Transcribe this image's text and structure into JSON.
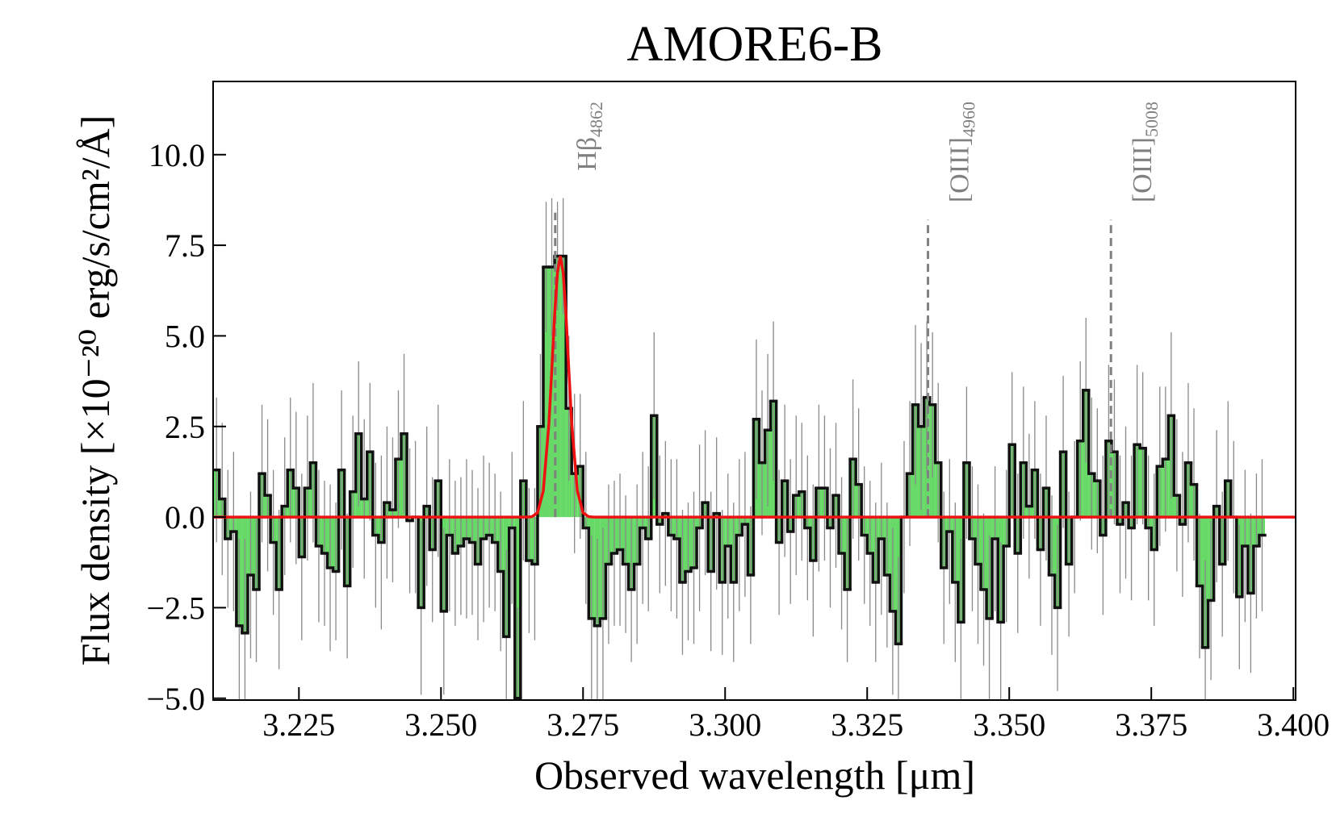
{
  "chart_data": {
    "type": "step",
    "title": "AMORE6-B",
    "x_label": "Observed wavelength [μm]",
    "y_label": "Flux density [×10⁻²⁰ erg/s/cm²/Å]",
    "xlim": [
      3.2099,
      3.4004
    ],
    "ylim": [
      -5.05,
      12.02
    ],
    "xticks": [
      3.225,
      {
        "value": 3.25,
        "label": "3.250"
      },
      3.275,
      {
        "value": 3.3,
        "label": "3.300"
      },
      3.325,
      {
        "value": 3.35,
        "label": "3.350"
      },
      3.375,
      {
        "value": 3.4,
        "label": "3.400"
      }
    ],
    "yticks": [
      {
        "value": -5,
        "label": "−5.0"
      },
      {
        "value": -2.5,
        "label": "−2.5"
      },
      {
        "value": 0,
        "label": "0.0"
      },
      2.5,
      {
        "value": 5,
        "label": "5.0"
      },
      7.5,
      {
        "value": 10,
        "label": "10.0"
      }
    ],
    "series": [
      {
        "name": "spectrum",
        "color": "#66d966",
        "edge_color": "#111111",
        "error_color": "#8a8a8a",
        "x": [
          3.2105,
          3.2115,
          3.2125,
          3.2135,
          3.2145,
          3.2155,
          3.2165,
          3.2175,
          3.2185,
          3.2195,
          3.2205,
          3.2215,
          3.2225,
          3.2235,
          3.2245,
          3.2255,
          3.2265,
          3.2275,
          3.2285,
          3.2295,
          3.2305,
          3.2315,
          3.2325,
          3.2335,
          3.2345,
          3.2355,
          3.2365,
          3.2375,
          3.2385,
          3.2395,
          3.2405,
          3.2415,
          3.2425,
          3.2435,
          3.2445,
          3.2455,
          3.2465,
          3.2475,
          3.2485,
          3.2495,
          3.2505,
          3.2515,
          3.2525,
          3.2535,
          3.2545,
          3.2555,
          3.2565,
          3.2575,
          3.2585,
          3.2595,
          3.2605,
          3.2615,
          3.2625,
          3.2635,
          3.2645,
          3.2655,
          3.2665,
          3.2675,
          3.2685,
          3.2695,
          3.2705,
          3.2715,
          3.2725,
          3.2735,
          3.2745,
          3.2755,
          3.2765,
          3.2775,
          3.2785,
          3.2795,
          3.2805,
          3.2815,
          3.2825,
          3.2835,
          3.2845,
          3.2855,
          3.2865,
          3.2875,
          3.2885,
          3.2895,
          3.2905,
          3.2915,
          3.2925,
          3.2935,
          3.2945,
          3.2955,
          3.2965,
          3.2975,
          3.2985,
          3.2995,
          3.3005,
          3.3015,
          3.3025,
          3.3035,
          3.3045,
          3.3055,
          3.3065,
          3.3075,
          3.3085,
          3.3095,
          3.3105,
          3.3115,
          3.3125,
          3.3135,
          3.3145,
          3.3155,
          3.3165,
          3.3175,
          3.3185,
          3.3195,
          3.3205,
          3.3215,
          3.3225,
          3.3235,
          3.3245,
          3.3255,
          3.3265,
          3.3275,
          3.3285,
          3.3295,
          3.3305,
          3.3315,
          3.3325,
          3.3335,
          3.3345,
          3.3355,
          3.3365,
          3.3375,
          3.3385,
          3.3395,
          3.3405,
          3.3415,
          3.3425,
          3.3435,
          3.3445,
          3.3455,
          3.3465,
          3.3475,
          3.3485,
          3.3495,
          3.3505,
          3.3515,
          3.3525,
          3.3535,
          3.3545,
          3.3555,
          3.3565,
          3.3575,
          3.3585,
          3.3595,
          3.3605,
          3.3615,
          3.3625,
          3.3635,
          3.3645,
          3.3655,
          3.3665,
          3.3675,
          3.3685,
          3.3695,
          3.3705,
          3.3715,
          3.3725,
          3.3735,
          3.3745,
          3.3755,
          3.3765,
          3.3775,
          3.3785,
          3.3795,
          3.3805,
          3.3815,
          3.3825,
          3.3835,
          3.3845,
          3.3855,
          3.3865,
          3.3875,
          3.3885,
          3.3895,
          3.3905,
          3.3915,
          3.3925,
          3.3935,
          3.3945
        ],
        "values": [
          1.3,
          0.5,
          -0.6,
          -0.4,
          -3.0,
          -3.2,
          -1.6,
          -2.0,
          1.2,
          0.6,
          -0.7,
          -2.0,
          0.3,
          1.3,
          0.8,
          -1.1,
          0.8,
          1.5,
          -0.8,
          -1.0,
          -1.4,
          -1.5,
          1.3,
          -1.9,
          0.7,
          2.3,
          0.5,
          1.8,
          -0.5,
          -0.7,
          0.4,
          0.2,
          1.6,
          2.3,
          -0.1,
          0.0,
          -2.5,
          0.3,
          -0.9,
          1.0,
          -2.6,
          -0.5,
          -1.0,
          -0.8,
          -0.6,
          -0.7,
          -1.3,
          -0.6,
          -0.5,
          -0.7,
          -1.5,
          -3.3,
          -0.3,
          -5.0,
          1.0,
          -1.2,
          -1.3,
          2.5,
          6.9,
          6.9,
          7.2,
          7.2,
          3.0,
          1.2,
          1.4,
          -0.3,
          -2.8,
          -3.0,
          -2.8,
          -1.3,
          -1.0,
          -0.9,
          -1.3,
          -2.0,
          -1.3,
          -0.3,
          -0.6,
          2.8,
          -0.2,
          0.1,
          -0.5,
          -0.6,
          -1.8,
          -1.5,
          -1.4,
          -0.3,
          0.4,
          -1.5,
          0.1,
          -1.8,
          -0.8,
          -1.8,
          -0.5,
          -0.2,
          -1.6,
          2.7,
          1.5,
          2.4,
          3.2,
          -0.7,
          1.0,
          -0.4,
          0.6,
          0.7,
          -0.3,
          -1.2,
          0.8,
          0.8,
          -0.3,
          0.6,
          -1.0,
          -2.0,
          1.6,
          0.9,
          -0.5,
          -1.0,
          -1.8,
          -0.6,
          -1.6,
          -2.6,
          -3.5,
          0.0,
          1.2,
          3.1,
          2.5,
          3.3,
          3.1,
          1.5,
          -1.4,
          -0.4,
          -1.8,
          -2.9,
          1.5,
          -0.6,
          -1.3,
          -2.0,
          -2.8,
          -0.6,
          -2.9,
          -0.8,
          2.0,
          -1.0,
          1.5,
          0.3,
          1.3,
          -0.9,
          0.8,
          -1.6,
          -2.5,
          1.8,
          -1.3,
          0.0,
          2.1,
          3.5,
          1.2,
          1.0,
          -0.5,
          2.1,
          1.8,
          -0.2,
          0.4,
          -0.3,
          2.0,
          1.9,
          -0.3,
          -0.9,
          1.4,
          1.6,
          2.8,
          0.6,
          -0.2,
          1.5,
          0.9,
          -1.9,
          -3.6,
          -2.3,
          0.3,
          -1.3,
          1.0,
          0.0,
          -2.2,
          -0.8,
          -2.1,
          -0.8,
          -0.5
        ],
        "errors": [
          2.0,
          2.1,
          1.9,
          2.2,
          2.4,
          2.6,
          2.3,
          2.0,
          1.9,
          2.1,
          2.0,
          2.2,
          1.9,
          2.0,
          2.1,
          2.3,
          2.0,
          2.2,
          2.1,
          2.0,
          2.3,
          1.9,
          2.2,
          2.0,
          2.1,
          2.0,
          2.2,
          1.9,
          2.0,
          2.4,
          2.1,
          2.0,
          1.9,
          2.2,
          2.0,
          2.1,
          2.4,
          2.2,
          2.0,
          2.1,
          2.3,
          2.1,
          2.0,
          1.9,
          2.2,
          2.0,
          2.1,
          2.3,
          2.0,
          1.9,
          2.2,
          2.4,
          2.1,
          2.5,
          2.2,
          2.0,
          2.1,
          2.0,
          1.8,
          1.9,
          1.5,
          1.6,
          2.0,
          2.2,
          2.0,
          2.1,
          2.3,
          2.4,
          2.5,
          2.2,
          2.0,
          2.1,
          1.9,
          2.0,
          2.2,
          2.1,
          2.0,
          2.3,
          1.9,
          2.0,
          2.1,
          2.2,
          2.0,
          1.9,
          2.1,
          2.3,
          2.0,
          2.2,
          2.1,
          2.0,
          2.0,
          2.2,
          2.1,
          2.0,
          1.9,
          2.2,
          2.0,
          2.1,
          2.2,
          2.0,
          2.1,
          2.0,
          2.2,
          1.9,
          2.0,
          2.1,
          2.3,
          2.0,
          2.2,
          2.0,
          2.1,
          2.0,
          2.2,
          2.1,
          1.9,
          2.0,
          2.2,
          2.1,
          2.0,
          2.3,
          2.4,
          2.1,
          2.0,
          2.2,
          2.3,
          2.1,
          2.0,
          2.2,
          2.1,
          2.0,
          2.2,
          2.3,
          2.1,
          2.0,
          2.2,
          2.1,
          2.3,
          2.0,
          2.2,
          2.1,
          2.0,
          2.2,
          2.1,
          2.0,
          1.9,
          2.1,
          2.0,
          2.2,
          2.3,
          2.1,
          2.0,
          2.1,
          2.2,
          2.0,
          2.1,
          2.0,
          2.2,
          2.1,
          2.0,
          1.9,
          2.1,
          2.0,
          2.2,
          2.1,
          2.0,
          2.1,
          2.2,
          2.0,
          2.3,
          2.1,
          2.0,
          2.2,
          2.1,
          2.0,
          2.4,
          2.2,
          2.1,
          2.0,
          2.2,
          2.1,
          2.0,
          2.1,
          2.2,
          2.0,
          2.1
        ]
      },
      {
        "name": "fit",
        "color": "#ee1111",
        "x": [
          3.2099,
          3.265,
          3.266,
          3.267,
          3.268,
          3.269,
          3.2695,
          3.27,
          3.2705,
          3.271,
          3.2715,
          3.272,
          3.2725,
          3.273,
          3.274,
          3.275,
          3.276,
          3.277,
          3.4004
        ],
        "values": [
          0,
          0,
          0.01,
          0.12,
          0.72,
          2.6,
          4.06,
          5.58,
          6.75,
          7.2,
          6.75,
          5.58,
          4.06,
          2.6,
          0.72,
          0.12,
          0.01,
          0,
          0
        ]
      }
    ],
    "lines": [
      {
        "label": "Hβ",
        "subscript": "4862",
        "x": 3.2701,
        "ymax": 8.4
      },
      {
        "label": "[OIII]",
        "subscript": "4960",
        "x": 3.3357,
        "ymax": 8.2
      },
      {
        "label": "[OIII]",
        "subscript": "5008",
        "x": 3.3679,
        "ymax": 8.2
      }
    ],
    "line_color": "#808080"
  }
}
